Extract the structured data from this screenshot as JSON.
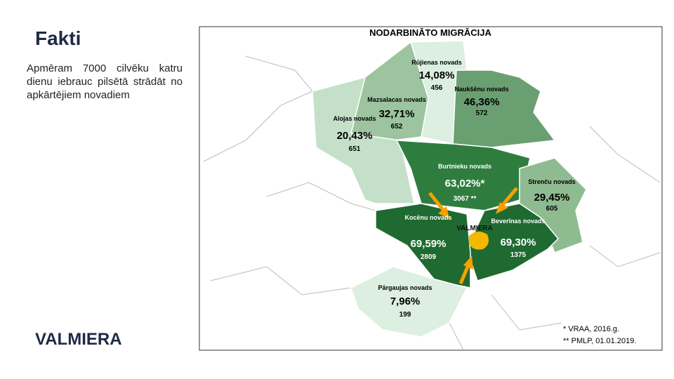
{
  "slide": {
    "title": "Fakti",
    "text": "Apmēram 7000 cilvēku katru dienu iebrauc pilsētā strādāt no apkārtējiem novadiem",
    "logo": "VALMIERA"
  },
  "map": {
    "title": "NODARBINĀTO MIGRĀCIJA",
    "center": "VALMIERA",
    "regions": [
      {
        "name": "Rūjienas novads",
        "share": "14,08%",
        "count": "456"
      },
      {
        "name": "Naukšēnu novads",
        "share": "46,36%",
        "count": "572"
      },
      {
        "name": "Mazsalacas novads",
        "share": "32,71%",
        "count": "652"
      },
      {
        "name": "Alojas novads",
        "share": "20,43%",
        "count": "651"
      },
      {
        "name": "Burtnieku novads",
        "share": "63,02%*",
        "count": "3067 **"
      },
      {
        "name": "Strenču novads",
        "share": "29,45%",
        "count": "605"
      },
      {
        "name": "Beverīnas novads",
        "share": "69,30%",
        "count": "1375"
      },
      {
        "name": "Kocēnu novads",
        "share": "69,59%",
        "count": "2809"
      },
      {
        "name": "Pārgaujas novads",
        "share": "7,96%",
        "count": "199"
      }
    ],
    "notes": [
      "* VRAA, 2016.g.",
      "** PMLP, 01.01.2019."
    ]
  }
}
